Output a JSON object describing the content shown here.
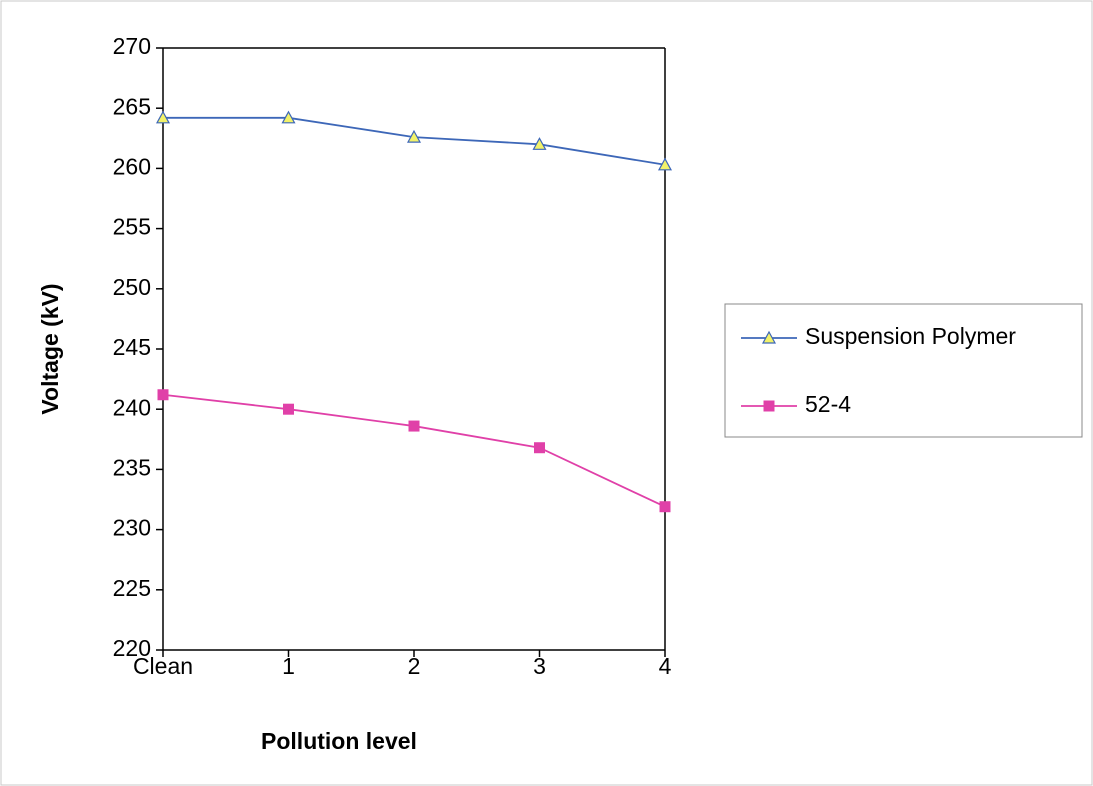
{
  "chart_data": {
    "type": "line",
    "x_label": "Pollution level",
    "y_label": "Voltage (kV)",
    "categories": [
      "Clean",
      "1",
      "2",
      "3",
      "4"
    ],
    "series": [
      {
        "name": "Suspension Polymer",
        "color": "#3d67b8",
        "marker": "triangle",
        "marker_fill": "#f2f26a",
        "values": [
          264.2,
          264.2,
          262.6,
          262.0,
          260.3
        ]
      },
      {
        "name": "52-4",
        "color": "#e040a8",
        "marker": "square",
        "marker_fill": "#e040a8",
        "values": [
          241.2,
          240.0,
          238.6,
          236.8,
          231.9
        ]
      }
    ],
    "ylim": [
      220,
      270
    ],
    "yticks": [
      220,
      225,
      230,
      235,
      240,
      245,
      250,
      255,
      260,
      265,
      270
    ],
    "grid": false,
    "legend": "right"
  }
}
